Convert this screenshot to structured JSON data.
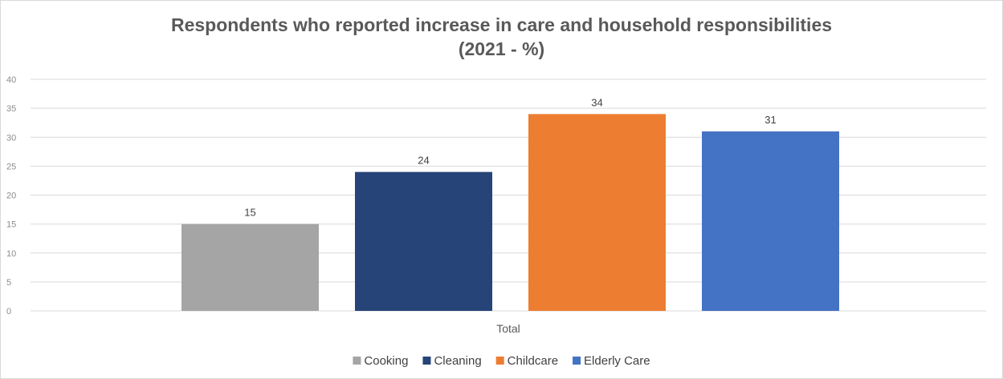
{
  "chart_data": {
    "type": "bar",
    "title": [
      "Respondents who reported increase in care and household responsibilities",
      "(2021 - %)"
    ],
    "categories": [
      "Total"
    ],
    "series": [
      {
        "name": "Cooking",
        "values": [
          15
        ],
        "color": "#a5a5a5"
      },
      {
        "name": "Cleaning",
        "values": [
          24
        ],
        "color": "#264478"
      },
      {
        "name": "Childcare",
        "values": [
          34
        ],
        "color": "#ed7d31"
      },
      {
        "name": "Elderly Care",
        "values": [
          31
        ],
        "color": "#4472c4"
      }
    ],
    "ylim": [
      0,
      40
    ],
    "yticks": [
      0,
      5,
      10,
      15,
      20,
      25,
      30,
      35,
      40
    ],
    "grid": true,
    "legend": "bottom",
    "data_labels": true
  }
}
